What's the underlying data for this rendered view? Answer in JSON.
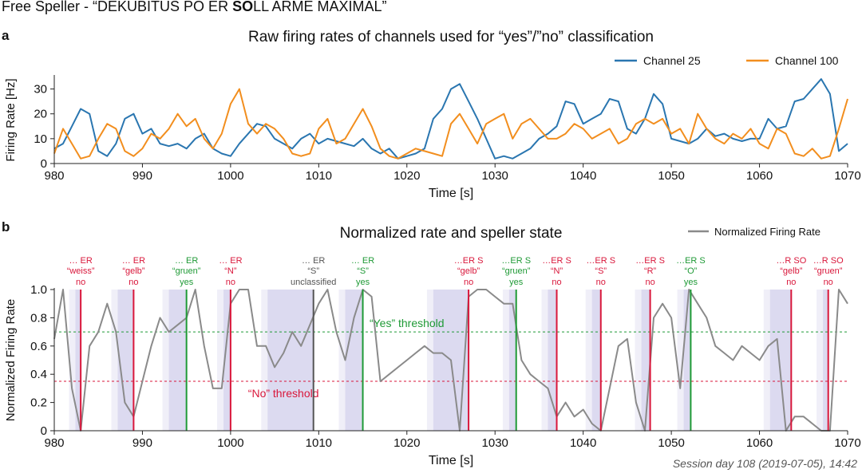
{
  "figure": {
    "title_pre": "Free Speller - “DEKUBITUS PO ER ",
    "title_bold": "SO",
    "title_post": "LL ARME MAXIMAL”",
    "caption": "Session day 108 (2019-07-05), 14:42"
  },
  "colors": {
    "ch25": "#2a76b0",
    "ch100": "#f28e1e",
    "norm": "#8a8a8a",
    "yes": "#1f9a36",
    "no": "#d9173b",
    "unclassified": "#555555",
    "band_dark": "#dcdaf0",
    "band_light": "#f0eff8"
  },
  "chart_data": [
    {
      "panel": "a",
      "type": "line",
      "title": "Raw firing rates of channels used for “yes”/”no” classification",
      "xlabel": "Time [s]",
      "ylabel": "Firing Rate [Hz]",
      "xlim": [
        980,
        1070
      ],
      "ylim": [
        0,
        35
      ],
      "xticks": [
        980,
        990,
        1000,
        1010,
        1020,
        1030,
        1040,
        1050,
        1060,
        1070
      ],
      "yticks": [
        0,
        10,
        20,
        30
      ],
      "legend": "top-right",
      "series": [
        {
          "name": "Channel 25",
          "x": [
            980,
            981,
            982,
            983,
            984,
            985,
            986,
            987,
            988,
            989,
            990,
            991,
            992,
            993,
            994,
            995,
            996,
            997,
            998,
            999,
            1000,
            1001,
            1002,
            1003,
            1004,
            1005,
            1006,
            1007,
            1008,
            1009,
            1010,
            1011,
            1012,
            1013,
            1014,
            1015,
            1016,
            1017,
            1018,
            1019,
            1020,
            1021,
            1022,
            1023,
            1024,
            1025,
            1026,
            1027,
            1028,
            1029,
            1030,
            1031,
            1032,
            1033,
            1034,
            1035,
            1036,
            1037,
            1038,
            1039,
            1040,
            1041,
            1042,
            1043,
            1044,
            1045,
            1046,
            1047,
            1048,
            1049,
            1050,
            1051,
            1052,
            1053,
            1054,
            1055,
            1056,
            1057,
            1058,
            1059,
            1060,
            1061,
            1062,
            1063,
            1064,
            1065,
            1066,
            1067,
            1068,
            1069,
            1070
          ],
          "y": [
            6,
            8,
            15,
            22,
            20,
            5,
            3,
            8,
            18,
            20,
            12,
            14,
            8,
            7,
            8,
            6,
            10,
            12,
            6,
            4,
            3,
            8,
            12,
            16,
            15,
            10,
            8,
            6,
            10,
            12,
            8,
            10,
            9,
            8,
            7,
            10,
            6,
            4,
            6,
            2,
            3,
            4,
            6,
            18,
            22,
            30,
            32,
            25,
            18,
            10,
            2,
            3,
            2,
            4,
            6,
            10,
            12,
            15,
            25,
            24,
            16,
            18,
            20,
            26,
            25,
            14,
            12,
            18,
            28,
            24,
            10,
            9,
            8,
            10,
            14,
            11,
            12,
            10,
            9,
            10,
            10,
            18,
            14,
            15,
            25,
            26,
            30,
            34,
            28,
            5,
            8
          ]
        },
        {
          "name": "Channel 100",
          "x": [
            980,
            981,
            982,
            983,
            984,
            985,
            986,
            987,
            988,
            989,
            990,
            991,
            992,
            993,
            994,
            995,
            996,
            997,
            998,
            999,
            1000,
            1001,
            1002,
            1003,
            1004,
            1005,
            1006,
            1007,
            1008,
            1009,
            1010,
            1011,
            1012,
            1013,
            1014,
            1015,
            1016,
            1017,
            1018,
            1019,
            1020,
            1021,
            1022,
            1023,
            1024,
            1025,
            1026,
            1027,
            1028,
            1029,
            1030,
            1031,
            1032,
            1033,
            1034,
            1035,
            1036,
            1037,
            1038,
            1039,
            1040,
            1041,
            1042,
            1043,
            1044,
            1045,
            1046,
            1047,
            1048,
            1049,
            1050,
            1051,
            1052,
            1053,
            1054,
            1055,
            1056,
            1057,
            1058,
            1059,
            1060,
            1061,
            1062,
            1063,
            1064,
            1065,
            1066,
            1067,
            1068,
            1069,
            1070
          ],
          "y": [
            4,
            14,
            8,
            2,
            3,
            10,
            16,
            14,
            5,
            3,
            6,
            12,
            10,
            14,
            20,
            15,
            18,
            10,
            6,
            12,
            24,
            30,
            16,
            12,
            16,
            14,
            10,
            4,
            3,
            4,
            14,
            18,
            8,
            10,
            16,
            22,
            15,
            6,
            3,
            2,
            4,
            6,
            5,
            4,
            3,
            16,
            20,
            14,
            8,
            16,
            18,
            20,
            10,
            16,
            18,
            14,
            10,
            10,
            12,
            16,
            14,
            10,
            12,
            14,
            8,
            10,
            16,
            18,
            16,
            18,
            12,
            14,
            8,
            20,
            14,
            10,
            8,
            12,
            10,
            14,
            8,
            6,
            14,
            12,
            4,
            3,
            6,
            2,
            3,
            14,
            26
          ]
        }
      ]
    },
    {
      "panel": "b",
      "type": "line",
      "title": "Normalized rate and speller state",
      "xlabel": "Time [s]",
      "ylabel": "Normalized Firing Rate",
      "xlim": [
        980,
        1070
      ],
      "ylim": [
        0,
        1
      ],
      "xticks": [
        980,
        990,
        1000,
        1010,
        1020,
        1030,
        1040,
        1050,
        1060,
        1070
      ],
      "yticks": [
        0,
        0.2,
        0.4,
        0.6,
        0.8,
        1.0
      ],
      "legend": "top-right",
      "yes_threshold": 0.7,
      "no_threshold": 0.35,
      "threshold_labels": {
        "yes": "“Yes” threshold",
        "no": "“No” threshold"
      },
      "series": [
        {
          "name": "Normalized Firing Rate",
          "x": [
            980,
            981,
            982,
            983,
            984,
            985,
            986,
            987,
            988,
            989,
            990,
            991,
            992,
            993,
            994,
            995,
            996,
            997,
            998,
            999,
            1000,
            1001,
            1002,
            1003,
            1004,
            1005,
            1006,
            1007,
            1008,
            1009,
            1010,
            1011,
            1012,
            1013,
            1014,
            1015,
            1016,
            1017,
            1018,
            1019,
            1020,
            1021,
            1022,
            1023,
            1024,
            1025,
            1026,
            1027,
            1028,
            1029,
            1030,
            1031,
            1032,
            1033,
            1034,
            1035,
            1036,
            1037,
            1038,
            1039,
            1040,
            1041,
            1042,
            1043,
            1044,
            1045,
            1046,
            1047,
            1048,
            1049,
            1050,
            1051,
            1052,
            1053,
            1054,
            1055,
            1056,
            1057,
            1058,
            1059,
            1060,
            1061,
            1062,
            1063,
            1064,
            1065,
            1066,
            1067,
            1068,
            1069,
            1070
          ],
          "y": [
            0.65,
            1.0,
            0.3,
            0.0,
            0.6,
            0.7,
            0.9,
            0.7,
            0.2,
            0.1,
            0.35,
            0.6,
            0.8,
            0.7,
            0.75,
            0.8,
            1.0,
            0.6,
            0.3,
            0.3,
            0.9,
            1.0,
            1.0,
            0.6,
            0.6,
            0.45,
            0.55,
            0.7,
            0.6,
            0.75,
            0.9,
            1.0,
            0.7,
            0.5,
            0.8,
            1.0,
            0.95,
            0.35,
            0.4,
            0.45,
            0.5,
            0.55,
            0.6,
            0.55,
            0.55,
            0.5,
            0.0,
            0.95,
            1.0,
            1.0,
            0.95,
            0.9,
            0.9,
            0.5,
            0.4,
            0.35,
            0.3,
            0.1,
            0.2,
            0.1,
            0.15,
            0.05,
            0.0,
            0.3,
            0.6,
            0.65,
            0.2,
            0.0,
            0.8,
            0.9,
            0.8,
            0.3,
            1.0,
            0.9,
            0.8,
            0.6,
            0.55,
            0.5,
            0.6,
            0.55,
            0.5,
            0.6,
            0.65,
            0.0,
            0.1,
            0.1,
            0.05,
            0.0,
            0.0,
            1.0,
            0.9
          ]
        }
      ],
      "events": [
        {
          "t": 983.0,
          "prefix": "… ER",
          "letter": "“weiss”",
          "result": "no",
          "band": [
            982.4,
            983.0
          ]
        },
        {
          "t": 989.0,
          "prefix": "… ER",
          "letter": "“gelb”",
          "result": "no",
          "band": [
            987.2,
            989.0
          ]
        },
        {
          "t": 995.0,
          "prefix": "… ER",
          "letter": "“gruen”",
          "result": "yes",
          "band": [
            993.0,
            995.0
          ]
        },
        {
          "t": 1000.0,
          "prefix": "… ER",
          "letter": "“N”",
          "result": "no",
          "band": [
            999.2,
            1000.0
          ]
        },
        {
          "t": 1009.4,
          "prefix": "… ER",
          "letter": "“S”",
          "result": "unclassified",
          "band": [
            1004.2,
            1009.4
          ]
        },
        {
          "t": 1015.0,
          "prefix": "… ER",
          "letter": "“S”",
          "result": "yes",
          "band": [
            1013.0,
            1015.0
          ]
        },
        {
          "t": 1027.0,
          "prefix": "…ER S",
          "letter": "“gelb”",
          "result": "no",
          "band": [
            1023.0,
            1027.0
          ]
        },
        {
          "t": 1032.4,
          "prefix": "…ER S",
          "letter": "“gruen”",
          "result": "yes",
          "band": [
            1031.6,
            1032.4
          ]
        },
        {
          "t": 1037.0,
          "prefix": "…ER S",
          "letter": "“N”",
          "result": "no",
          "band": [
            1036.0,
            1037.0
          ]
        },
        {
          "t": 1042.0,
          "prefix": "…ER S",
          "letter": "“S”",
          "result": "no",
          "band": [
            1041.0,
            1042.0
          ]
        },
        {
          "t": 1047.6,
          "prefix": "…ER S",
          "letter": "“R”",
          "result": "no",
          "band": [
            1046.6,
            1047.6
          ]
        },
        {
          "t": 1052.2,
          "prefix": "…ER S",
          "letter": "“O”",
          "result": "yes",
          "band": [
            1051.4,
            1052.2
          ]
        },
        {
          "t": 1063.6,
          "prefix": "…R SO",
          "letter": "“gelb”",
          "result": "no",
          "band": [
            1061.2,
            1063.6
          ]
        },
        {
          "t": 1067.8,
          "prefix": "…R SO",
          "letter": "“gruen”",
          "result": "no",
          "band": [
            1067.2,
            1067.8
          ]
        }
      ]
    }
  ]
}
